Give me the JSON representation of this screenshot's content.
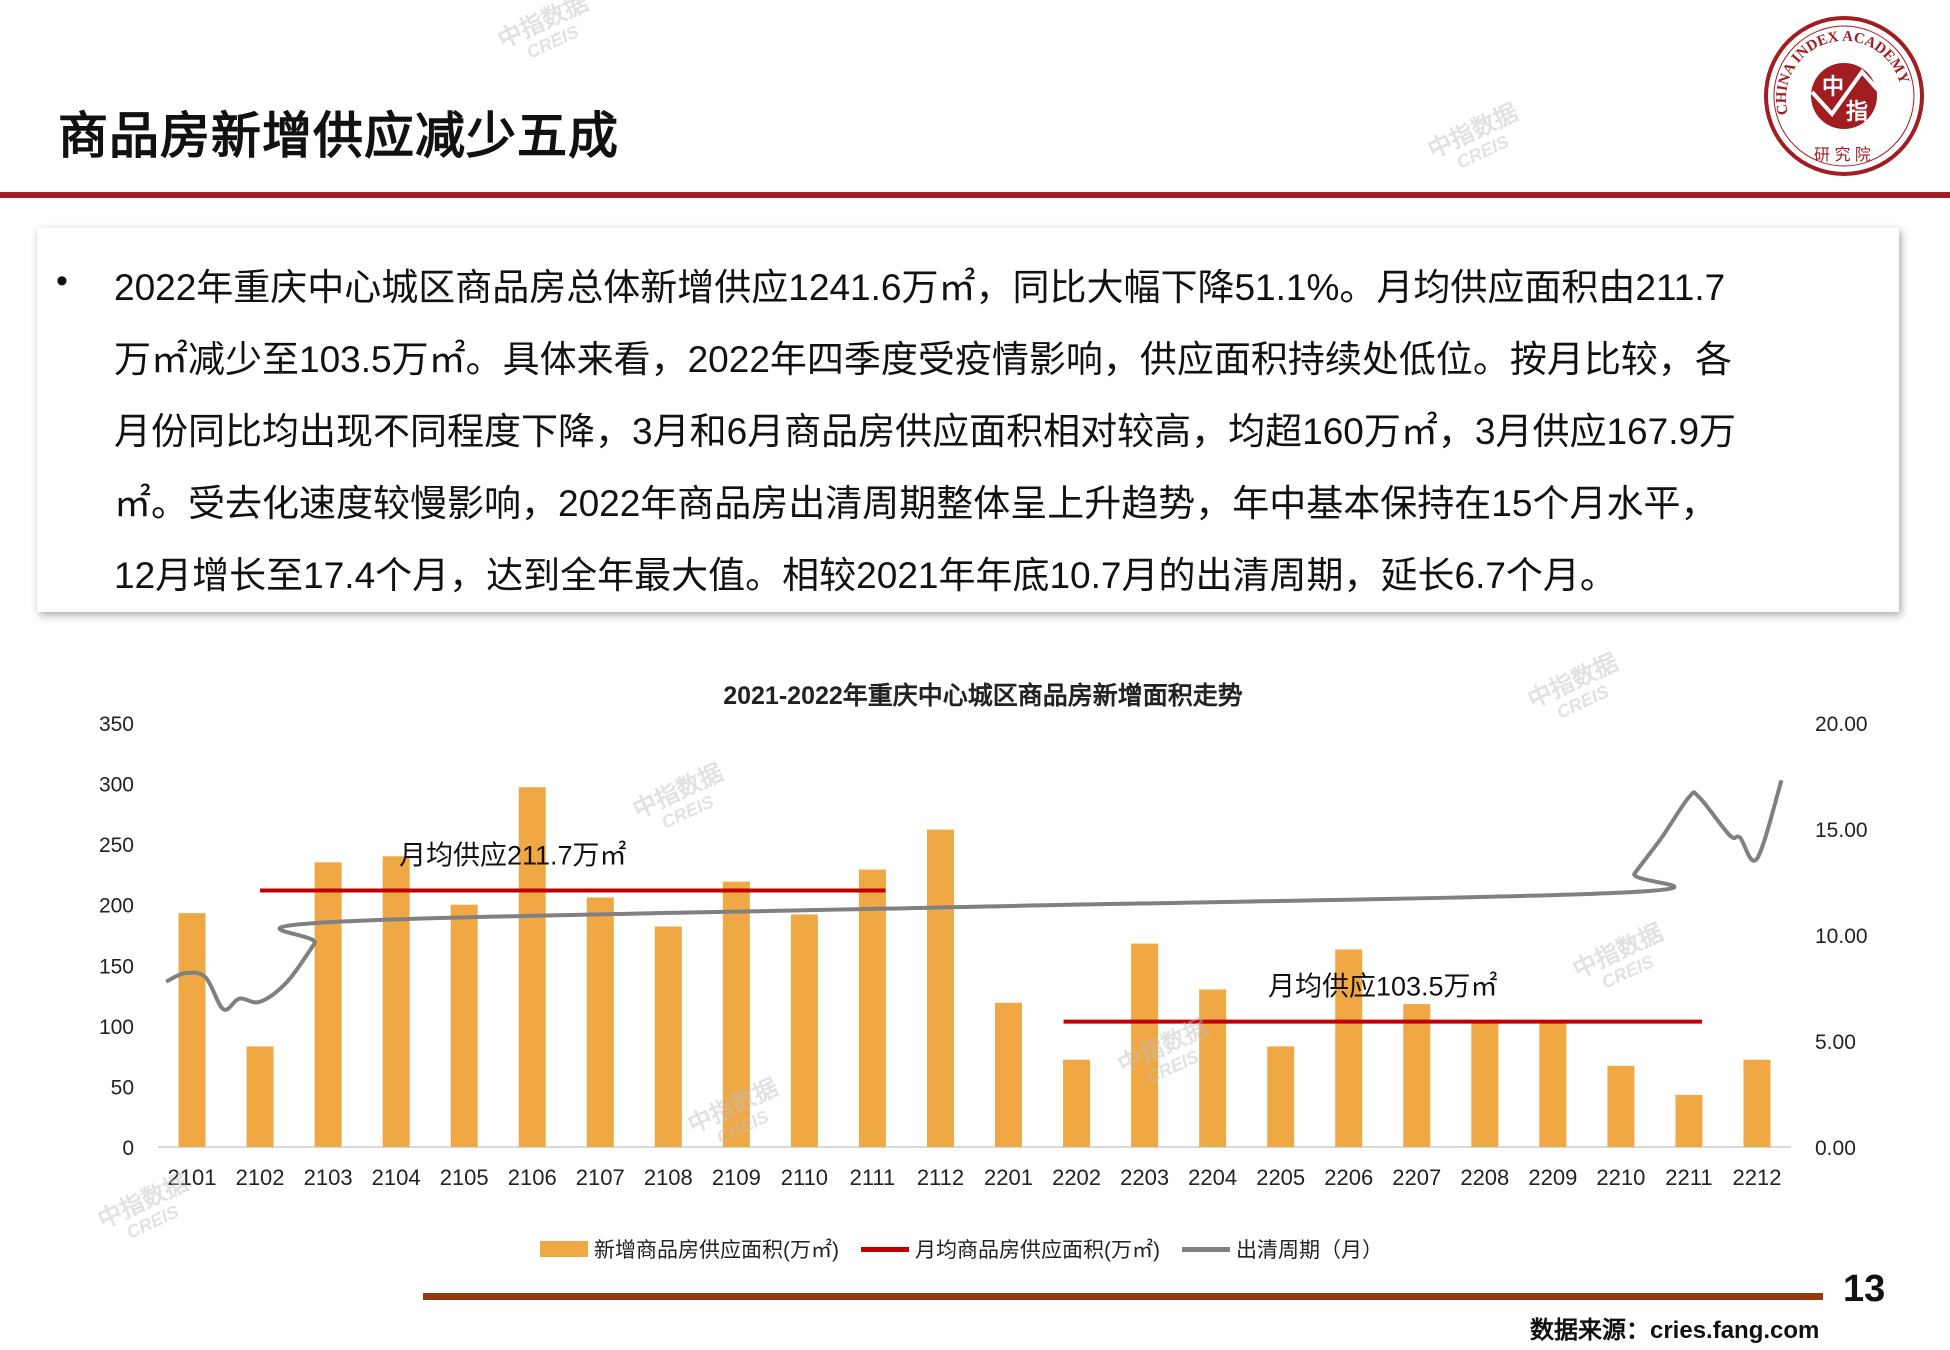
{
  "header": {
    "title": "商品房新增供应减少五成"
  },
  "logo": {
    "ring_text": "CHINA INDEX ACADEMY",
    "center_top": "中",
    "center_bottom": "指",
    "bottom_text": "研究院"
  },
  "summary": {
    "bullet": "•",
    "lines": [
      "2022年重庆中心城区商品房总体新增供应1241.6万㎡，同比大幅下降51.1%。月均供应面积由211.7",
      "万㎡减少至103.5万㎡。具体来看，2022年四季度受疫情影响，供应面积持续处低位。按月比较，各",
      "月份同比均出现不同程度下降，3月和6月商品房供应面积相对较高，均超160万㎡，3月供应167.9万",
      "㎡。受去化速度较慢影响，2022年商品房出清周期整体呈上升趋势，年中基本保持在15个月水平，",
      "12月增长至17.4个月，达到全年最大值。相较2021年年底10.7月的出清周期，延长6.7个月。"
    ]
  },
  "watermark": {
    "cn": "中指数据",
    "en": "CREIS"
  },
  "chart_data": {
    "type": "bar",
    "title": "2021-2022年重庆中心城区商品房新增面积走势",
    "categories": [
      "2101",
      "2102",
      "2103",
      "2104",
      "2105",
      "2106",
      "2107",
      "2108",
      "2109",
      "2110",
      "2111",
      "2112",
      "2201",
      "2202",
      "2203",
      "2204",
      "2205",
      "2206",
      "2207",
      "2208",
      "2209",
      "2210",
      "2211",
      "2212"
    ],
    "ylim_left": [
      0,
      350
    ],
    "yticks_left": [
      "0",
      "50",
      "100",
      "150",
      "200",
      "250",
      "300",
      "350"
    ],
    "ylim_right": [
      0,
      20
    ],
    "yticks_right": [
      "0.00",
      "5.00",
      "10.00",
      "15.00",
      "20.00"
    ],
    "series": [
      {
        "name": "新增商品房供应面积(万㎡)",
        "type": "bar",
        "axis": "left",
        "color": "#f0a845",
        "values": [
          193,
          83,
          235,
          240,
          200,
          297,
          206,
          182,
          219,
          192,
          229,
          262,
          119,
          72,
          167.9,
          130,
          83,
          163,
          118,
          102,
          102,
          67,
          43,
          72
        ]
      },
      {
        "name": "月均商品房供应面积(万㎡)",
        "type": "line",
        "axis": "left",
        "color": "#c00000",
        "segments": [
          {
            "from": "2102",
            "to": "2111",
            "value": 211.7,
            "label": "月均供应211.7万㎡"
          },
          {
            "from": "2202",
            "to": "2211",
            "value": 103.5,
            "label": "月均供应103.5万㎡"
          }
        ]
      },
      {
        "name": "出清周期（月）",
        "type": "line",
        "axis": "right",
        "color": "#808080",
        "points": [
          [
            -0.38,
            7.8
          ],
          [
            -0.1,
            8.2
          ],
          [
            0.2,
            8.0
          ],
          [
            0.46,
            6.5
          ],
          [
            0.7,
            7.0
          ],
          [
            1,
            6.85
          ],
          [
            1.4,
            7.8
          ],
          [
            1.8,
            9.6
          ],
          [
            2,
            10.6
          ],
          [
            11,
            11.3
          ],
          [
            21,
            12.0
          ],
          [
            21.2,
            12.9
          ],
          [
            21.6,
            14.6
          ],
          [
            22,
            16.5
          ],
          [
            22.15,
            16.5
          ],
          [
            22.6,
            14.7
          ],
          [
            22.75,
            14.6
          ],
          [
            23.0,
            13.6
          ],
          [
            23.36,
            17.3
          ]
        ]
      }
    ],
    "grid": false,
    "legend": "bottom"
  },
  "footer": {
    "page_number": "13",
    "source": "数据来源：cries.fang.com"
  }
}
